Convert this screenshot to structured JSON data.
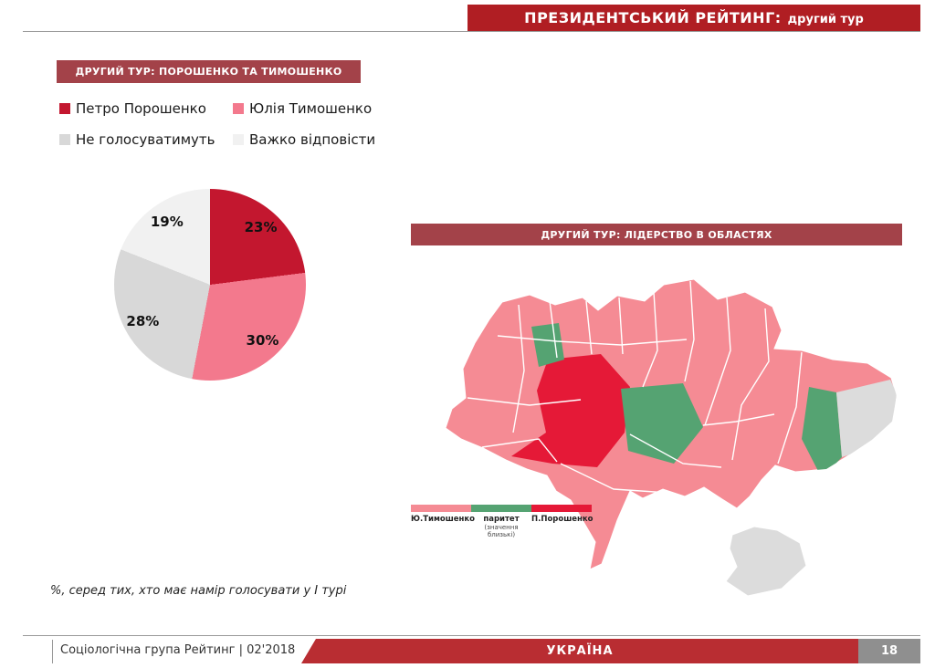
{
  "header": {
    "title_main": "ПРЕЗИДЕНТСЬКИЙ РЕЙТИНГ:",
    "title_sub": "другий тур"
  },
  "left_panel": {
    "section_title": "ДРУГИЙ ТУР: ПОРОШЕНКО ТА ТИМОШЕНКО",
    "legend": [
      {
        "label": "Петро Порошенко",
        "color": "#c3172f"
      },
      {
        "label": "Юлія Тимошенко",
        "color": "#f3798d"
      },
      {
        "label": "Не голосуватимуть",
        "color": "#d8d8d8"
      },
      {
        "label": "Важко відповісти",
        "color": "#f1f1f1"
      }
    ],
    "footnote": "%, серед тих, хто має намір голосувати у І турі"
  },
  "chart_data": {
    "type": "pie",
    "title": "ДРУГИЙ ТУР: ПОРОШЕНКО ТА ТИМОШЕНКО",
    "labels": [
      "Петро Порошенко",
      "Юлія Тимошенко",
      "Не голосуватимуть",
      "Важко відповісти"
    ],
    "values": [
      23,
      30,
      28,
      19
    ],
    "value_labels": [
      "23%",
      "30%",
      "28%",
      "19%"
    ],
    "colors": [
      "#c3172f",
      "#f3798d",
      "#d8d8d8",
      "#f1f1f1"
    ],
    "start_angle_deg": 0,
    "direction": "clockwise"
  },
  "map_panel": {
    "section_title": "ДРУГИЙ ТУР: ЛІДЕРСТВО В ОБЛАСТЯХ",
    "legend": [
      {
        "label": "Ю.Тимошенко",
        "sublabel": "",
        "color": "#f58b94"
      },
      {
        "label": "паритет",
        "sublabel": "(значення близькі)",
        "color": "#55a372"
      },
      {
        "label": "П.Порошенко",
        "sublabel": "",
        "color": "#e51937"
      }
    ],
    "nodata_color": "#dcdcdc"
  },
  "footer": {
    "source": "Соціологічна група Рейтинг  |  02'2018",
    "country": "УКРАЇНА",
    "page": "18"
  }
}
